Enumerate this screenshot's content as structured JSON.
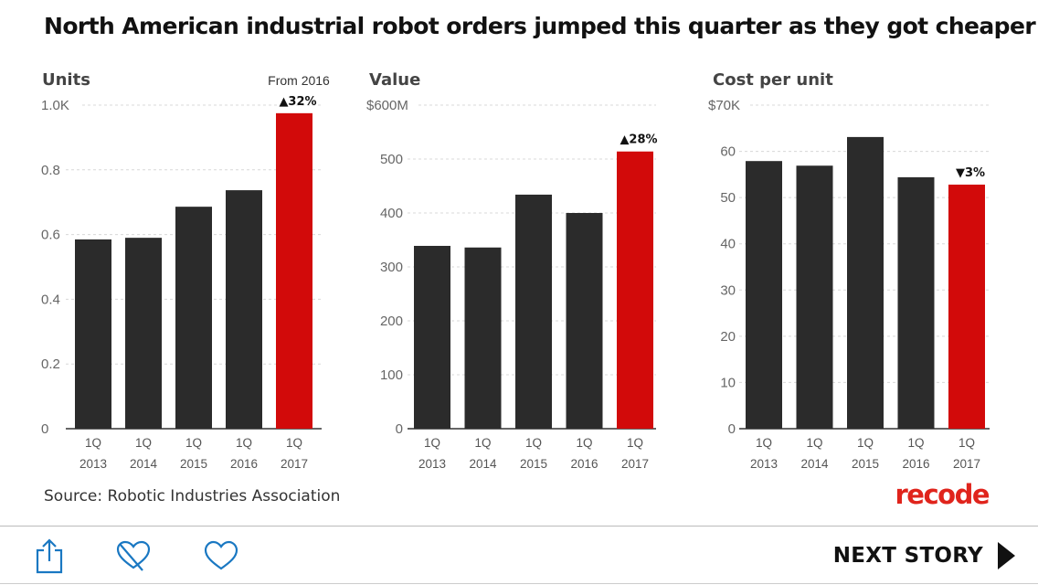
{
  "title": "North American industrial robot orders jumped this quarter as they got cheaper",
  "source": "Source: Robotic Industries Association",
  "logo": "recode",
  "colors": {
    "bar": "#2b2b2b",
    "highlight": "#d20a0a",
    "brand": "#e0241c",
    "icon": "#1a78c2"
  },
  "toolbar": {
    "icons": [
      "share-icon",
      "unlike-heart-icon",
      "like-heart-icon"
    ],
    "next_label": "NEXT STORY"
  },
  "chart_data": [
    {
      "type": "bar",
      "title": "Units",
      "categories": [
        "1Q 2013",
        "1Q 2014",
        "1Q 2015",
        "1Q 2016",
        "1Q 2017"
      ],
      "values": [
        0.585,
        0.59,
        0.686,
        0.737,
        0.975
      ],
      "unit": "thousand units",
      "ylim": [
        0,
        1.0
      ],
      "yticks": [
        0,
        0.2,
        0.4,
        0.6,
        0.8,
        1.0
      ],
      "ytick_labels": [
        "0",
        "0.2",
        "0.4",
        "0.6",
        "0.8",
        "1.0K"
      ],
      "highlight_index": 4,
      "note": "From 2016",
      "annotation": "▲32%",
      "grid": true
    },
    {
      "type": "bar",
      "title": "Value",
      "categories": [
        "1Q 2013",
        "1Q 2014",
        "1Q 2015",
        "1Q 2016",
        "1Q 2017"
      ],
      "values": [
        339,
        336,
        434,
        400,
        514
      ],
      "unit": "$M",
      "ylim": [
        0,
        600
      ],
      "yticks": [
        0,
        100,
        200,
        300,
        400,
        500,
        600
      ],
      "ytick_labels": [
        "0",
        "100",
        "200",
        "300",
        "400",
        "500",
        "$600M"
      ],
      "highlight_index": 4,
      "annotation": "▲28%",
      "grid": true
    },
    {
      "type": "bar",
      "title": "Cost per unit",
      "categories": [
        "1Q 2013",
        "1Q 2014",
        "1Q 2015",
        "1Q 2016",
        "1Q 2017"
      ],
      "values": [
        57.9,
        56.9,
        63.1,
        54.4,
        52.8
      ],
      "unit": "$K",
      "ylim": [
        0,
        70
      ],
      "yticks": [
        0,
        10,
        20,
        30,
        40,
        50,
        60,
        70
      ],
      "ytick_labels": [
        "0",
        "10",
        "20",
        "30",
        "40",
        "50",
        "60",
        "$70K"
      ],
      "highlight_index": 4,
      "annotation": "▼3%",
      "grid": true
    }
  ]
}
